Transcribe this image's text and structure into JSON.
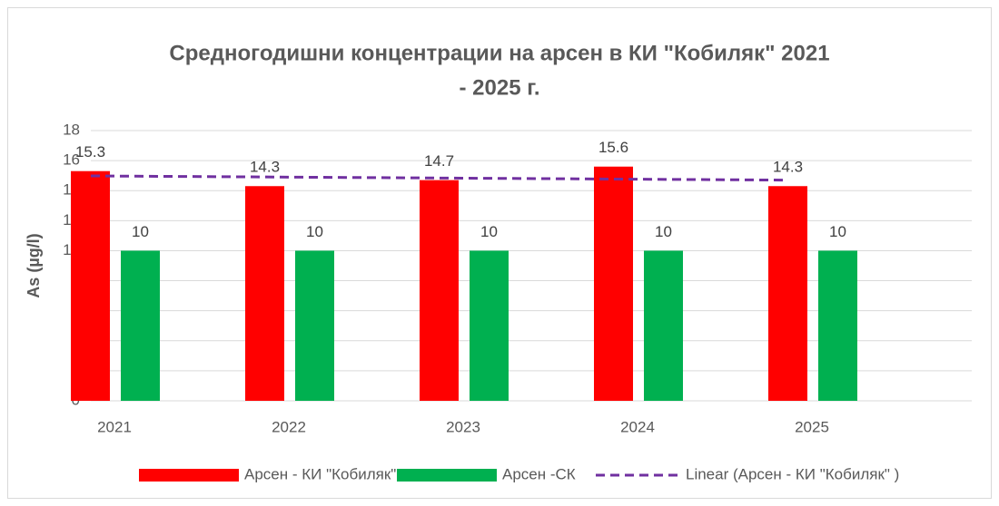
{
  "chart_data": {
    "type": "bar",
    "title": [
      "Средногодишни концентрации на арсен в КИ \"Кобиляк\" 2021",
      "- 2025 г."
    ],
    "y_label": "As (µg/l)",
    "categories": [
      "2021",
      "2022",
      "2023",
      "2024",
      "2025"
    ],
    "series": [
      {
        "name": "Арсен - КИ \"Кобиляк\"",
        "color": "#ff0000",
        "values": [
          15.3,
          14.3,
          14.7,
          15.6,
          14.3
        ]
      },
      {
        "name": "Арсен -СК",
        "color": "#00b050",
        "values": [
          10,
          10,
          10,
          10,
          10
        ]
      },
      {
        "name": "Linear (Арсен - КИ \"Кобиляк\" )",
        "type": "line",
        "dashed": true,
        "color": "#7030a0",
        "values": [
          14.98,
          14.91,
          14.84,
          14.77,
          14.7
        ]
      }
    ],
    "ylim": [
      0,
      18
    ],
    "yticks": [
      0,
      2,
      4,
      6,
      8,
      10,
      12,
      14,
      16,
      18
    ],
    "grid": true,
    "legend": "bottom"
  }
}
